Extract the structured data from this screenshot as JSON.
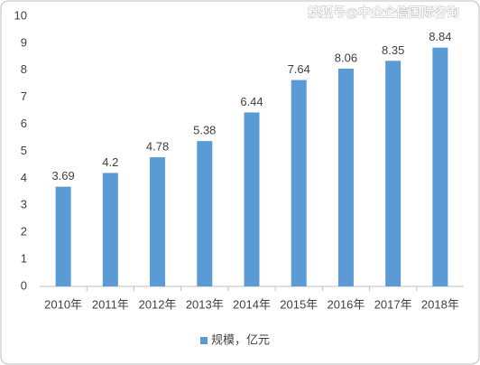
{
  "chart_data": {
    "type": "bar",
    "categories": [
      "2010年",
      "2011年",
      "2012年",
      "2013年",
      "2014年",
      "2015年",
      "2016年",
      "2017年",
      "2018年"
    ],
    "series": [
      {
        "name": "规模，亿元",
        "color": "#5b9bd5",
        "values": [
          3.69,
          4.2,
          4.78,
          5.38,
          6.44,
          7.64,
          8.06,
          8.35,
          8.84
        ]
      }
    ],
    "ylim": [
      0,
      10
    ],
    "yticks": [
      0,
      1,
      2,
      3,
      4,
      5,
      6,
      7,
      8,
      9,
      10
    ],
    "grid": false,
    "legend": "bottom",
    "data_labels": true,
    "watermark": "搜狐号@中金企信国际咨询"
  }
}
